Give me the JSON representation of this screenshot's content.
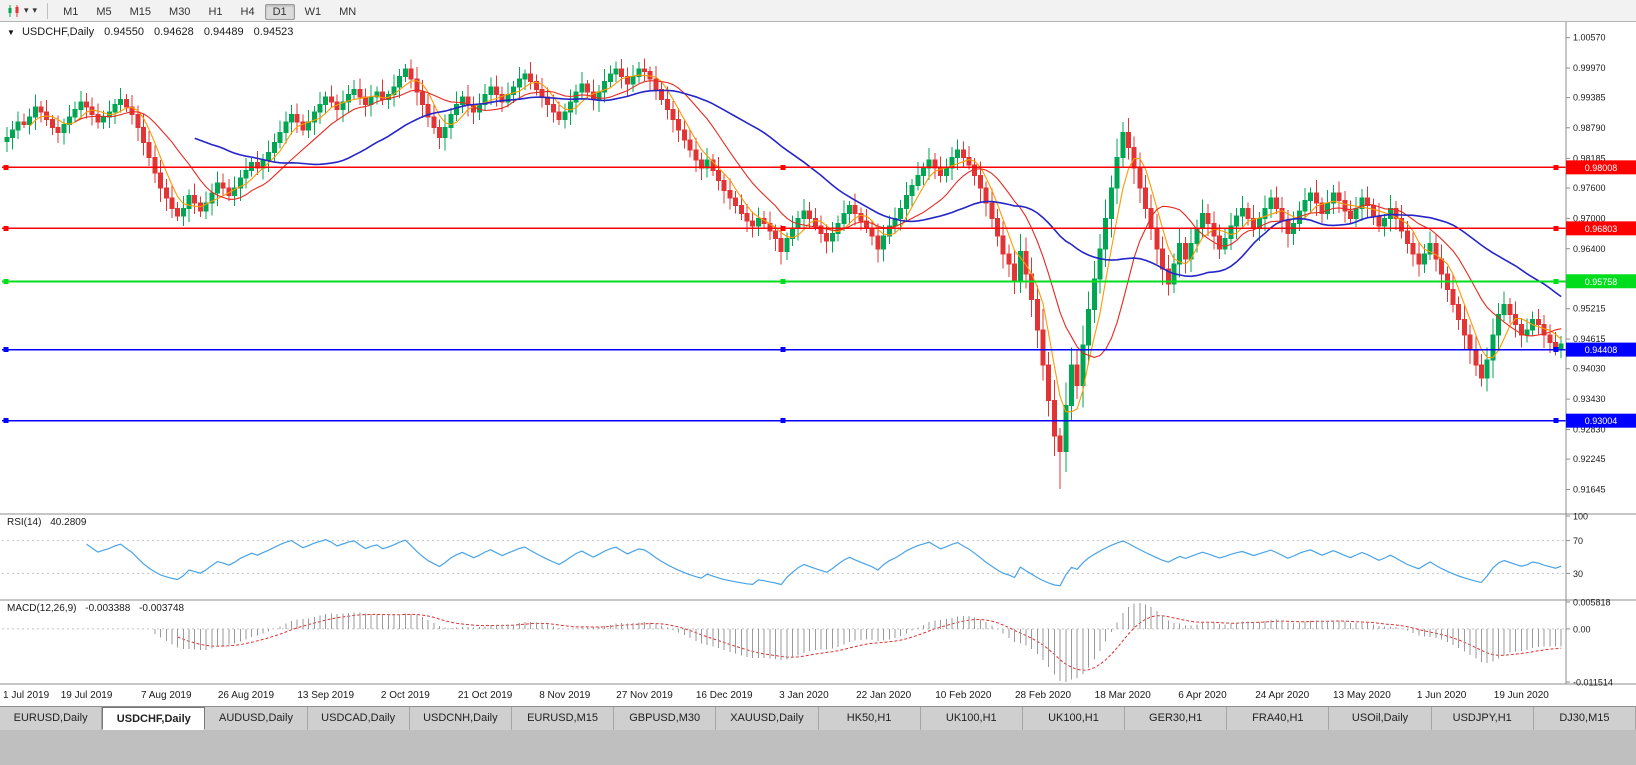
{
  "toolbar": {
    "timeframes": [
      "M1",
      "M5",
      "M15",
      "M30",
      "H1",
      "H4",
      "D1",
      "W1",
      "MN"
    ],
    "active_timeframe": "D1"
  },
  "chart": {
    "title": "USDCHF,Daily",
    "ohlc": {
      "open": "0.94550",
      "high": "0.94628",
      "low": "0.94489",
      "close": "0.94523"
    },
    "price_axis_labels": [
      "1.00570",
      "0.99970",
      "0.99385",
      "0.98790",
      "0.98185",
      "0.97600",
      "0.97000",
      "0.96400",
      "0.95810",
      "0.95215",
      "0.94615",
      "0.94030",
      "0.93430",
      "0.92830",
      "0.92245",
      "0.91645"
    ],
    "hlines": [
      {
        "label": "0.98008",
        "price": 0.98008,
        "color": "#FF0000"
      },
      {
        "label": "0.96803",
        "price": 0.96803,
        "color": "#FF0000"
      },
      {
        "label": "0.95758",
        "price": 0.95758,
        "color": "#00DD1C"
      },
      {
        "label": "0.94408",
        "price": 0.94408,
        "color": "#0000FF"
      },
      {
        "label": "0.93004",
        "price": 0.93004,
        "color": "#0000FF"
      }
    ],
    "x_labels": [
      "1 Jul 2019",
      "19 Jul 2019",
      "7 Aug 2019",
      "26 Aug 2019",
      "13 Sep 2019",
      "2 Oct 2019",
      "21 Oct 2019",
      "8 Nov 2019",
      "27 Nov 2019",
      "16 Dec 2019",
      "3 Jan 2020",
      "22 Jan 2020",
      "10 Feb 2020",
      "28 Feb 2020",
      "18 Mar 2020",
      "6 Apr 2020",
      "24 Apr 2020",
      "13 May 2020",
      "1 Jun 2020",
      "19 Jun 2020"
    ]
  },
  "chart_data": {
    "type": "candlestick",
    "symbol": "USDCHF",
    "timeframe": "Daily",
    "closes": [
      0.986,
      0.9875,
      0.989,
      0.9885,
      0.99,
      0.992,
      0.991,
      0.9895,
      0.988,
      0.987,
      0.9885,
      0.99,
      0.9915,
      0.993,
      0.992,
      0.9905,
      0.989,
      0.99,
      0.991,
      0.9925,
      0.9935,
      0.992,
      0.9905,
      0.988,
      0.985,
      0.982,
      0.979,
      0.976,
      0.974,
      0.972,
      0.9705,
      0.972,
      0.9745,
      0.973,
      0.9715,
      0.973,
      0.975,
      0.977,
      0.976,
      0.9745,
      0.976,
      0.978,
      0.9795,
      0.981,
      0.98,
      0.9815,
      0.983,
      0.985,
      0.987,
      0.989,
      0.9905,
      0.989,
      0.9875,
      0.989,
      0.991,
      0.9925,
      0.994,
      0.993,
      0.9915,
      0.993,
      0.9945,
      0.9955,
      0.994,
      0.9925,
      0.994,
      0.995,
      0.9935,
      0.9945,
      0.996,
      0.998,
      0.9995,
      0.9975,
      0.995,
      0.9925,
      0.99,
      0.988,
      0.986,
      0.988,
      0.9905,
      0.9925,
      0.994,
      0.9925,
      0.991,
      0.9925,
      0.9945,
      0.996,
      0.9945,
      0.993,
      0.9945,
      0.996,
      0.9975,
      0.9985,
      0.997,
      0.9955,
      0.994,
      0.9925,
      0.991,
      0.9895,
      0.991,
      0.993,
      0.995,
      0.9965,
      0.995,
      0.9935,
      0.995,
      0.997,
      0.9985,
      0.9995,
      0.998,
      0.9965,
      0.998,
      0.9995,
      0.999,
      0.9975,
      0.9955,
      0.9935,
      0.9915,
      0.9895,
      0.9875,
      0.9855,
      0.9835,
      0.9815,
      0.98,
      0.9815,
      0.9795,
      0.9775,
      0.9755,
      0.974,
      0.9725,
      0.971,
      0.9695,
      0.9685,
      0.97,
      0.969,
      0.9675,
      0.966,
      0.9635,
      0.966,
      0.968,
      0.97,
      0.9715,
      0.97,
      0.9685,
      0.967,
      0.9655,
      0.967,
      0.969,
      0.971,
      0.9725,
      0.971,
      0.9695,
      0.968,
      0.9665,
      0.964,
      0.9665,
      0.9685,
      0.97,
      0.972,
      0.9745,
      0.9765,
      0.9785,
      0.98,
      0.9815,
      0.98,
      0.9785,
      0.98,
      0.982,
      0.9835,
      0.982,
      0.9805,
      0.9785,
      0.976,
      0.973,
      0.97,
      0.9665,
      0.963,
      0.961,
      0.9575,
      0.9635,
      0.959,
      0.954,
      0.948,
      0.941,
      0.934,
      0.927,
      0.924,
      0.933,
      0.941,
      0.937,
      0.945,
      0.952,
      0.958,
      0.964,
      0.97,
      0.976,
      0.982,
      0.987,
      0.984,
      0.98,
      0.976,
      0.972,
      0.968,
      0.964,
      0.96,
      0.957,
      0.961,
      0.965,
      0.962,
      0.965,
      0.968,
      0.971,
      0.969,
      0.9665,
      0.964,
      0.966,
      0.9685,
      0.9705,
      0.972,
      0.97,
      0.968,
      0.97,
      0.972,
      0.974,
      0.972,
      0.9695,
      0.967,
      0.969,
      0.9715,
      0.9735,
      0.975,
      0.973,
      0.971,
      0.973,
      0.975,
      0.9735,
      0.9715,
      0.97,
      0.972,
      0.974,
      0.9725,
      0.9705,
      0.9685,
      0.97,
      0.972,
      0.97,
      0.9675,
      0.965,
      0.963,
      0.961,
      0.963,
      0.965,
      0.962,
      0.959,
      0.956,
      0.953,
      0.95,
      0.947,
      0.944,
      0.941,
      0.9385,
      0.942,
      0.947,
      0.951,
      0.953,
      0.951,
      0.949,
      0.947,
      0.948,
      0.95,
      0.949,
      0.947,
      0.9455,
      0.944,
      0.9452
    ],
    "wick_overrides": {
      "30": {
        "low": 0.9695
      },
      "70": {
        "high": 1.0005
      },
      "107": {
        "high": 1.001
      },
      "185": {
        "low": 0.9165
      },
      "259": {
        "low": 0.9368
      }
    },
    "ma_periods": [
      5,
      13,
      34
    ]
  },
  "rsi": {
    "label": "RSI(14)",
    "value": "40.2809",
    "period": 14,
    "levels": [
      {
        "label": "100",
        "value": 100
      },
      {
        "label": "70",
        "value": 70
      },
      {
        "label": "30",
        "value": 30
      }
    ]
  },
  "macd": {
    "label": "MACD(12,26,9)",
    "value1": "-0.003388",
    "value2": "-0.003748",
    "axis": [
      {
        "label": "0.005818",
        "value": 0.005818
      },
      {
        "label": "0.00",
        "value": 0
      },
      {
        "label": "-0.011514",
        "value": -0.011514
      }
    ]
  },
  "tabs": {
    "active_index": 1,
    "items": [
      "EURUSD,Daily",
      "USDCHF,Daily",
      "AUDUSD,Daily",
      "USDCAD,Daily",
      "USDCNH,Daily",
      "EURUSD,M15",
      "GBPUSD,M30",
      "XAUUSD,Daily",
      "HK50,H1",
      "UK100,H1",
      "UK100,H1",
      "GER30,H1",
      "FRA40,H1",
      "USOil,Daily",
      "USDJPY,H1",
      "DJ30,M15"
    ]
  },
  "colors": {
    "up": "#00A651",
    "down": "#E23434",
    "ma_fast": "#FF9900",
    "ma_mid": "#E8291F",
    "ma_slow": "#2525C8",
    "rsi": "#4AA3E8",
    "hist": "#9A9A9A",
    "signal": "#E03030",
    "axis_text": "#1A1A1A"
  }
}
